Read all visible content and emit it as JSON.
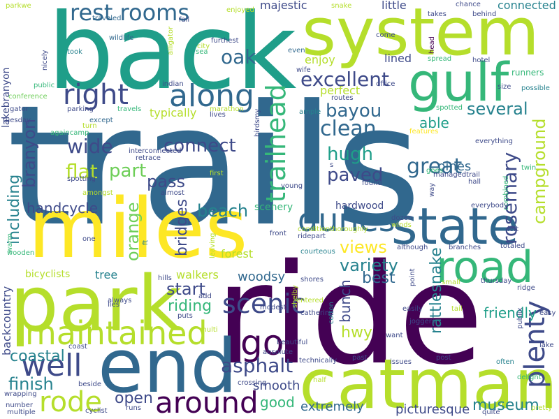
{
  "palette": {
    "dark_purple": "#440154",
    "indigo": "#3e4a89",
    "blue": "#31688e",
    "teal": "#26828e",
    "green_teal": "#1f9e89",
    "green": "#35b779",
    "light_green": "#6ece58",
    "yellow_green": "#b5de2b",
    "yellow": "#fde725",
    "background": "#ffffff"
  },
  "words": [
    {
      "text": "trails",
      "color": "#31688e"
    },
    {
      "text": "ride",
      "color": "#440154"
    },
    {
      "text": "back",
      "color": "#1f9e89"
    },
    {
      "text": "miles",
      "color": "#fde725"
    },
    {
      "text": "system",
      "color": "#b5de2b"
    },
    {
      "text": "park",
      "color": "#b5de2b"
    },
    {
      "text": "end",
      "color": "#31688e"
    },
    {
      "text": "catman",
      "color": "#b5de2b"
    },
    {
      "text": "state",
      "color": "#31688e"
    },
    {
      "text": "gulf",
      "color": "#35b779"
    },
    {
      "text": "road",
      "color": "#35b779"
    },
    {
      "text": "maintained",
      "color": "#b5de2b"
    },
    {
      "text": "along",
      "color": "#31688e"
    },
    {
      "text": "right",
      "color": "#3e4a89"
    },
    {
      "text": "around",
      "color": "#440154"
    },
    {
      "text": "well",
      "color": "#3e4a89"
    },
    {
      "text": "go",
      "color": "#440154"
    },
    {
      "text": "dunes",
      "color": "#31688e"
    },
    {
      "text": "rode",
      "color": "#b5de2b"
    },
    {
      "text": "plenty",
      "color": "#3e4a89"
    },
    {
      "text": "scenic",
      "color": "#3e4a89"
    },
    {
      "text": "rest rooms",
      "color": "#31688e"
    },
    {
      "text": "trailhead",
      "color": "#35b779"
    },
    {
      "text": "excellent",
      "color": "#3e4a89"
    },
    {
      "text": "clean",
      "color": "#31688e"
    },
    {
      "text": "oak",
      "color": "#31688e"
    },
    {
      "text": "bayou",
      "color": "#31688e"
    },
    {
      "text": "asphalt",
      "color": "#3e4a89"
    },
    {
      "text": "rosemary",
      "color": "#3e4a89"
    },
    {
      "text": "great",
      "color": "#31688e"
    },
    {
      "text": "paved",
      "color": "#3e4a89"
    },
    {
      "text": "hugh",
      "color": "#1f9e89"
    },
    {
      "text": "wide",
      "color": "#3e4a89"
    },
    {
      "text": "flat",
      "color": "#b5de2b"
    },
    {
      "text": "part",
      "color": "#6ece58"
    },
    {
      "text": "connect",
      "color": "#3e4a89"
    },
    {
      "text": "pass",
      "color": "#3e4a89"
    },
    {
      "text": "beach",
      "color": "#26828e"
    },
    {
      "text": "variety",
      "color": "#26828e"
    },
    {
      "text": "views",
      "color": "#fde725"
    },
    {
      "text": "several",
      "color": "#26828e"
    },
    {
      "text": "campground",
      "color": "#b5de2b"
    },
    {
      "text": "including",
      "color": "#26828e"
    },
    {
      "text": "branyon",
      "color": "#3e4a89"
    },
    {
      "text": "finish",
      "color": "#26828e"
    },
    {
      "text": "start",
      "color": "#3e4a89"
    },
    {
      "text": "orange",
      "color": "#6ece58"
    },
    {
      "text": "bridges",
      "color": "#3e4a89"
    },
    {
      "text": "riding",
      "color": "#35b779"
    },
    {
      "text": "open",
      "color": "#3e4a89"
    },
    {
      "text": "museum",
      "color": "#26828e"
    },
    {
      "text": "rattlesnake",
      "color": "#26828e"
    },
    {
      "text": "best",
      "color": "#31688e"
    },
    {
      "text": "bunch",
      "color": "#3e4a89"
    },
    {
      "text": "hwy",
      "color": "#b5de2b"
    },
    {
      "text": "handcycle",
      "color": "#3e4a89"
    },
    {
      "text": "friendly",
      "color": "#1f9e89"
    },
    {
      "text": "coastal",
      "color": "#26828e"
    },
    {
      "text": "good",
      "color": "#35b779"
    },
    {
      "text": "smooth",
      "color": "#3e4a89"
    },
    {
      "text": "extremely",
      "color": "#31688e"
    },
    {
      "text": "picturesque",
      "color": "#3e4a89"
    },
    {
      "text": "able",
      "color": "#1f9e89"
    },
    {
      "text": "pines",
      "color": "#31688e"
    },
    {
      "text": "woodsy",
      "color": "#31688e"
    },
    {
      "text": "hardwood",
      "color": "#3e4a89"
    },
    {
      "text": "scenery",
      "color": "#35b779"
    },
    {
      "text": "walkers",
      "color": "#b5de2b"
    },
    {
      "text": "bicyclists",
      "color": "#b5de2b"
    },
    {
      "text": "tree",
      "color": "#26828e"
    },
    {
      "text": "forest",
      "color": "#b5de2b"
    },
    {
      "text": "typically",
      "color": "#b5de2b"
    },
    {
      "text": "little",
      "color": "#3e4a89"
    },
    {
      "text": "majestic",
      "color": "#3e4a89"
    },
    {
      "text": "connected",
      "color": "#26828e"
    },
    {
      "text": "lined",
      "color": "#3e4a89"
    },
    {
      "text": "enjoy",
      "color": "#b5de2b"
    },
    {
      "text": "perfect",
      "color": "#b5de2b"
    },
    {
      "text": "backcountry",
      "color": "#3e4a89"
    },
    {
      "text": "lakebranyon",
      "color": "#3e4a89"
    },
    {
      "text": "runners",
      "color": "#35b779"
    },
    {
      "text": "wooden",
      "color": "#35b779"
    },
    {
      "text": "parkwe",
      "color": "#b5de2b"
    },
    {
      "text": "traveled",
      "color": "#31688e"
    },
    {
      "text": "wildlife",
      "color": "#31688e"
    },
    {
      "text": "took",
      "color": "#26828e"
    },
    {
      "text": "fall",
      "color": "#3e4a89"
    },
    {
      "text": "furthest",
      "color": "#3e4a89"
    },
    {
      "text": "city",
      "color": "#b5de2b"
    },
    {
      "text": "sea",
      "color": "#35b779"
    },
    {
      "text": "alligator",
      "color": "#b5de2b"
    },
    {
      "text": "enjoyed",
      "color": "#b5de2b"
    },
    {
      "text": "snake",
      "color": "#b5de2b"
    },
    {
      "text": "takes",
      "color": "#3e4a89"
    },
    {
      "text": "chance",
      "color": "#3e4a89"
    },
    {
      "text": "behind",
      "color": "#3e4a89"
    },
    {
      "text": "office",
      "color": "#3e4a89"
    },
    {
      "text": "come",
      "color": "#3e4a89"
    },
    {
      "text": "even",
      "color": "#31688e"
    },
    {
      "text": "wife",
      "color": "#3e4a89"
    },
    {
      "text": "spread",
      "color": "#35b779"
    },
    {
      "text": "head",
      "color": "#440154"
    },
    {
      "text": "hotel",
      "color": "#3e4a89"
    },
    {
      "text": "size",
      "color": "#3e4a89"
    },
    {
      "text": "possible",
      "color": "#26828e"
    },
    {
      "text": "indian",
      "color": "#3e4a89"
    },
    {
      "text": "nicely",
      "color": "#3e4a89"
    },
    {
      "text": "public",
      "color": "#35b779"
    },
    {
      "text": "conference",
      "color": "#6ece58"
    },
    {
      "text": "gator",
      "color": "#3e4a89"
    },
    {
      "text": "parking",
      "color": "#3e4a89"
    },
    {
      "text": "travels",
      "color": "#35b779"
    },
    {
      "text": "marathon",
      "color": "#b5de2b"
    },
    {
      "text": "routes",
      "color": "#3e4a89"
    },
    {
      "text": "ample",
      "color": "#26828e"
    },
    {
      "text": "spotted",
      "color": "#35b779"
    },
    {
      "text": "lives",
      "color": "#3e4a89"
    },
    {
      "text": "features",
      "color": "#fde725"
    },
    {
      "text": "twin",
      "color": "#35b779"
    },
    {
      "text": "everything",
      "color": "#3e4a89"
    },
    {
      "text": "except",
      "color": "#31688e"
    },
    {
      "text": "turn",
      "color": "#b5de2b"
    },
    {
      "text": "tuesday",
      "color": "#3e4a89"
    },
    {
      "text": "againcamp",
      "color": "#35b779"
    },
    {
      "text": "interconnected",
      "color": "#3e4a89"
    },
    {
      "text": "retrace",
      "color": "#3e4a89"
    },
    {
      "text": "birdsmy",
      "color": "#3e4a89"
    },
    {
      "text": "goes",
      "color": "#35b779"
    },
    {
      "text": "young",
      "color": "#3e4a89"
    },
    {
      "text": "spotting",
      "color": "#3e4a89"
    },
    {
      "text": "first",
      "color": "#b5de2b"
    },
    {
      "text": "managedtrail",
      "color": "#3e4a89"
    },
    {
      "text": "hall",
      "color": "#3e4a89"
    },
    {
      "text": "way",
      "color": "#3e4a89"
    },
    {
      "text": "found",
      "color": "#3e4a89"
    },
    {
      "text": "amongst",
      "color": "#b5de2b"
    },
    {
      "text": "combined",
      "color": "#35b779"
    },
    {
      "text": "everybody",
      "color": "#3e4a89"
    },
    {
      "text": "almost",
      "color": "#3e4a89"
    },
    {
      "text": "dozen",
      "color": "#3e4a89"
    },
    {
      "text": "winds",
      "color": "#b5de2b"
    },
    {
      "text": "front",
      "color": "#3e4a89"
    },
    {
      "text": "left",
      "color": "#3e4a89"
    },
    {
      "text": "conditionthoroughly",
      "color": "#b5de2b"
    },
    {
      "text": "ridepart",
      "color": "#3e4a89"
    },
    {
      "text": "totaled",
      "color": "#3e4a89"
    },
    {
      "text": "branches",
      "color": "#3e4a89"
    },
    {
      "text": "although",
      "color": "#3e4a89"
    },
    {
      "text": "one",
      "color": "#3e4a89"
    },
    {
      "text": "ft",
      "color": "#26828e"
    },
    {
      "text": "leaving",
      "color": "#b5de2b"
    },
    {
      "text": "warm",
      "color": "#35b779"
    },
    {
      "text": "courteous",
      "color": "#26828e"
    },
    {
      "text": "point",
      "color": "#3e4a89"
    },
    {
      "text": "hills",
      "color": "#3e4a89"
    },
    {
      "text": "shores",
      "color": "#3e4a89"
    },
    {
      "text": "small",
      "color": "#b5de2b"
    },
    {
      "text": "thursday",
      "color": "#3e4a89"
    },
    {
      "text": "ridge",
      "color": "#3e4a89"
    },
    {
      "text": "add",
      "color": "#3e4a89"
    },
    {
      "text": "entered",
      "color": "#b5de2b"
    },
    {
      "text": "lies",
      "color": "#3e4a89"
    },
    {
      "text": "always",
      "color": "#3e4a89"
    },
    {
      "text": "puts",
      "color": "#3e4a89"
    },
    {
      "text": "modest",
      "color": "#3e4a89"
    },
    {
      "text": "cotton",
      "color": "#26828e"
    },
    {
      "text": "catherine",
      "color": "#3e4a89"
    },
    {
      "text": "easily",
      "color": "#3e4a89"
    },
    {
      "text": "tail",
      "color": "#b5de2b"
    },
    {
      "text": "publix",
      "color": "#3e4a89"
    },
    {
      "text": "easy",
      "color": "#3e4a89"
    },
    {
      "text": "joggers",
      "color": "#3e4a89"
    },
    {
      "text": "multi",
      "color": "#b5de2b"
    },
    {
      "text": "shelby",
      "color": "#b5de2b"
    },
    {
      "text": "want",
      "color": "#3e4a89"
    },
    {
      "text": "beautiful",
      "color": "#3e4a89"
    },
    {
      "text": "absolute",
      "color": "#3e4a89"
    },
    {
      "text": "lake",
      "color": "#3e4a89"
    },
    {
      "text": "technically",
      "color": "#3e4a89"
    },
    {
      "text": "past",
      "color": "#3e4a89"
    },
    {
      "text": "issues",
      "color": "#3e4a89"
    },
    {
      "text": "post",
      "color": "#3e4a89"
    },
    {
      "text": "often",
      "color": "#26828e"
    },
    {
      "text": "coast",
      "color": "#3e4a89"
    },
    {
      "text": "beside",
      "color": "#3e4a89"
    },
    {
      "text": "crossing",
      "color": "#3e4a89"
    },
    {
      "text": "half",
      "color": "#b5de2b"
    },
    {
      "text": "delight",
      "color": "#35b779"
    },
    {
      "text": "wrapping",
      "color": "#3e4a89"
    },
    {
      "text": "number",
      "color": "#3e4a89"
    },
    {
      "text": "multiple",
      "color": "#3e4a89"
    },
    {
      "text": "cyclist",
      "color": "#3e4a89"
    },
    {
      "text": "runs",
      "color": "#3e4a89"
    },
    {
      "text": "quite",
      "color": "#3e4a89"
    },
    {
      "text": "pretty",
      "color": "#b5de2b"
    },
    {
      "text": "s",
      "color": "#3e4a89"
    }
  ]
}
